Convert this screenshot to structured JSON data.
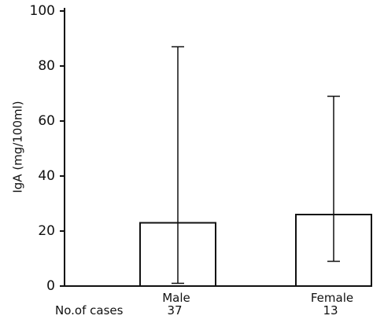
{
  "chart_data": {
    "type": "bar",
    "title": "",
    "xlabel": "",
    "ylabel": "IgA (mg/100ml)",
    "ylim": [
      0,
      100
    ],
    "yticks": [
      "0",
      "20",
      "40",
      "60",
      "80",
      "100"
    ],
    "categories": [
      "Male",
      "Female"
    ],
    "values": [
      23,
      26
    ],
    "error_low": [
      1,
      9
    ],
    "error_high": [
      87,
      69
    ],
    "cases_label": "No.of cases",
    "cases": [
      "37",
      "13"
    ],
    "grid": false,
    "colors": {
      "bar_fill": "#ffffff",
      "stroke": "#111111"
    }
  }
}
